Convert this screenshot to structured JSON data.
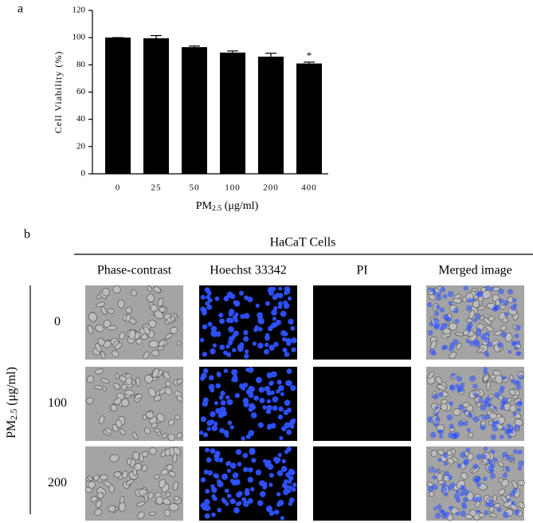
{
  "panel_a": {
    "label": "a"
  },
  "chart_data": {
    "type": "bar",
    "categories": [
      "0",
      "25",
      "50",
      "100",
      "200",
      "400"
    ],
    "values": [
      100,
      99.5,
      93,
      89,
      86,
      81
    ],
    "errors": [
      0,
      2,
      0.8,
      1.2,
      2.5,
      1
    ],
    "significance": [
      null,
      null,
      null,
      null,
      null,
      "*"
    ],
    "color": "#000000",
    "ylim": [
      0,
      120
    ],
    "yticks": [
      0,
      20,
      40,
      60,
      80,
      100,
      120
    ],
    "y_label": "Cell Viability (%)",
    "x_label": {
      "main": "PM",
      "sub": "2.5",
      "unit": " (μg/ml)"
    }
  },
  "panel_b": {
    "label": "b",
    "title": "HaCaT Cells",
    "columns": [
      "Phase-contrast",
      "Hoechst 33342",
      "PI",
      "Merged image"
    ],
    "rows": [
      "0",
      "100",
      "200"
    ],
    "row_axis_label": {
      "main": "PM",
      "sub": "2.5",
      "unit": " (μg/ml)"
    }
  }
}
